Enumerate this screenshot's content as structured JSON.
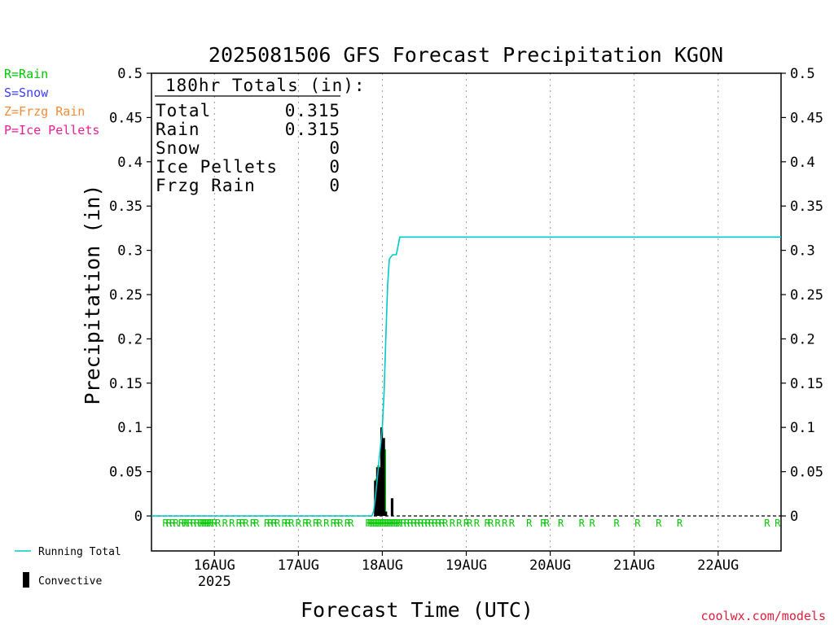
{
  "chart_data": {
    "type": "bar",
    "title": "2025081506 GFS Forecast Precipitation KGON",
    "ylabel": "Precipitation (in)",
    "xlabel": "Forecast Time (UTC)",
    "ylim": [
      0,
      0.5
    ],
    "yticks": [
      "0",
      "0.05",
      "0.1",
      "0.15",
      "0.2",
      "0.25",
      "0.3",
      "0.35",
      "0.4",
      "0.45",
      "0.5"
    ],
    "yticks_right": [
      "0",
      "0.05",
      "0.1",
      "0.15",
      "0.2",
      "0.25",
      "0.3",
      "0.35",
      "0.4",
      "0.45",
      "0.5"
    ],
    "x_range_hours": [
      0,
      180
    ],
    "x_ticks": [
      {
        "hour": 18,
        "label": "16AUG",
        "sublabel": "2025"
      },
      {
        "hour": 42,
        "label": "17AUG",
        "sublabel": ""
      },
      {
        "hour": 66,
        "label": "18AUG",
        "sublabel": ""
      },
      {
        "hour": 90,
        "label": "19AUG",
        "sublabel": ""
      },
      {
        "hour": 114,
        "label": "20AUG",
        "sublabel": ""
      },
      {
        "hour": 138,
        "label": "21AUG",
        "sublabel": ""
      },
      {
        "hour": 162,
        "label": "22AUG",
        "sublabel": ""
      }
    ],
    "grid": "vertical-dotted",
    "series": [
      {
        "name": "Running Total",
        "type": "line",
        "color": "#00c8c8",
        "x": [
          0,
          63,
          63.5,
          64,
          64.5,
          65,
          65.5,
          66,
          66.5,
          67,
          67.5,
          68,
          68.5,
          69,
          70,
          71,
          180
        ],
        "y": [
          0,
          0,
          0.005,
          0.02,
          0.04,
          0.06,
          0.08,
          0.1,
          0.14,
          0.2,
          0.26,
          0.29,
          0.293,
          0.295,
          0.295,
          0.315,
          0.315
        ]
      },
      {
        "name": "Convective",
        "type": "bar",
        "color": "#000000",
        "x": [
          64,
          64.6,
          65.2,
          65.8,
          66.4,
          67,
          68.8
        ],
        "y": [
          0.04,
          0.055,
          0.055,
          0.1,
          0.088,
          0.005,
          0.02
        ]
      },
      {
        "name": "Rain",
        "type": "bar",
        "color": "#00c800",
        "x": [
          64.3,
          64.9,
          65.5,
          66.1,
          66.7
        ],
        "y": [
          0.042,
          0.057,
          0.05,
          0.085,
          0.075
        ]
      }
    ],
    "ptype_hours": [
      4,
      5,
      6,
      7,
      8.5,
      9.5,
      10,
      11,
      12,
      13,
      14,
      14.5,
      15,
      15.5,
      16,
      16.5,
      17,
      18,
      19,
      21,
      23,
      25,
      26,
      27,
      29,
      30,
      33,
      34,
      35,
      36,
      38,
      39,
      40,
      42,
      44,
      45,
      47,
      48,
      50,
      52,
      53,
      54,
      56,
      57,
      62,
      62.5,
      63,
      63.5,
      64,
      64.5,
      65,
      65.5,
      66,
      66.5,
      67,
      67.5,
      68,
      68.5,
      69,
      69.5,
      70,
      70.5,
      71,
      72,
      73,
      74,
      75,
      76,
      77,
      78,
      79,
      80,
      81,
      82,
      83,
      84,
      86,
      88,
      90,
      91,
      93,
      96,
      97,
      99,
      101,
      103,
      108,
      112,
      113,
      117,
      123,
      126,
      133,
      139,
      145,
      151,
      176,
      179
    ],
    "ptype_label": "R",
    "totals_box": {
      "heading": "180hr Totals (in):",
      "rows": [
        {
          "label": "Total",
          "value": "0.315"
        },
        {
          "label": "Rain",
          "value": "0.315"
        },
        {
          "label": "Snow",
          "value": "0"
        },
        {
          "label": "Ice Pellets",
          "value": "0"
        },
        {
          "label": "Frzg Rain",
          "value": "0"
        }
      ]
    },
    "ptype_legend": [
      {
        "text": "R=Rain",
        "color": "#00c800"
      },
      {
        "text": "S=Snow",
        "color": "#3c3cff"
      },
      {
        "text": "Z=Frzg Rain",
        "color": "#f08c3c"
      },
      {
        "text": "P=Ice Pellets",
        "color": "#e61e96"
      }
    ],
    "series_legend": [
      {
        "text": "Running Total",
        "color": "#00c8c8"
      },
      {
        "text": "Convective",
        "color": "#000000"
      }
    ],
    "credit": "coolwx.com/models",
    "credit_color": "#dc1e3c"
  }
}
